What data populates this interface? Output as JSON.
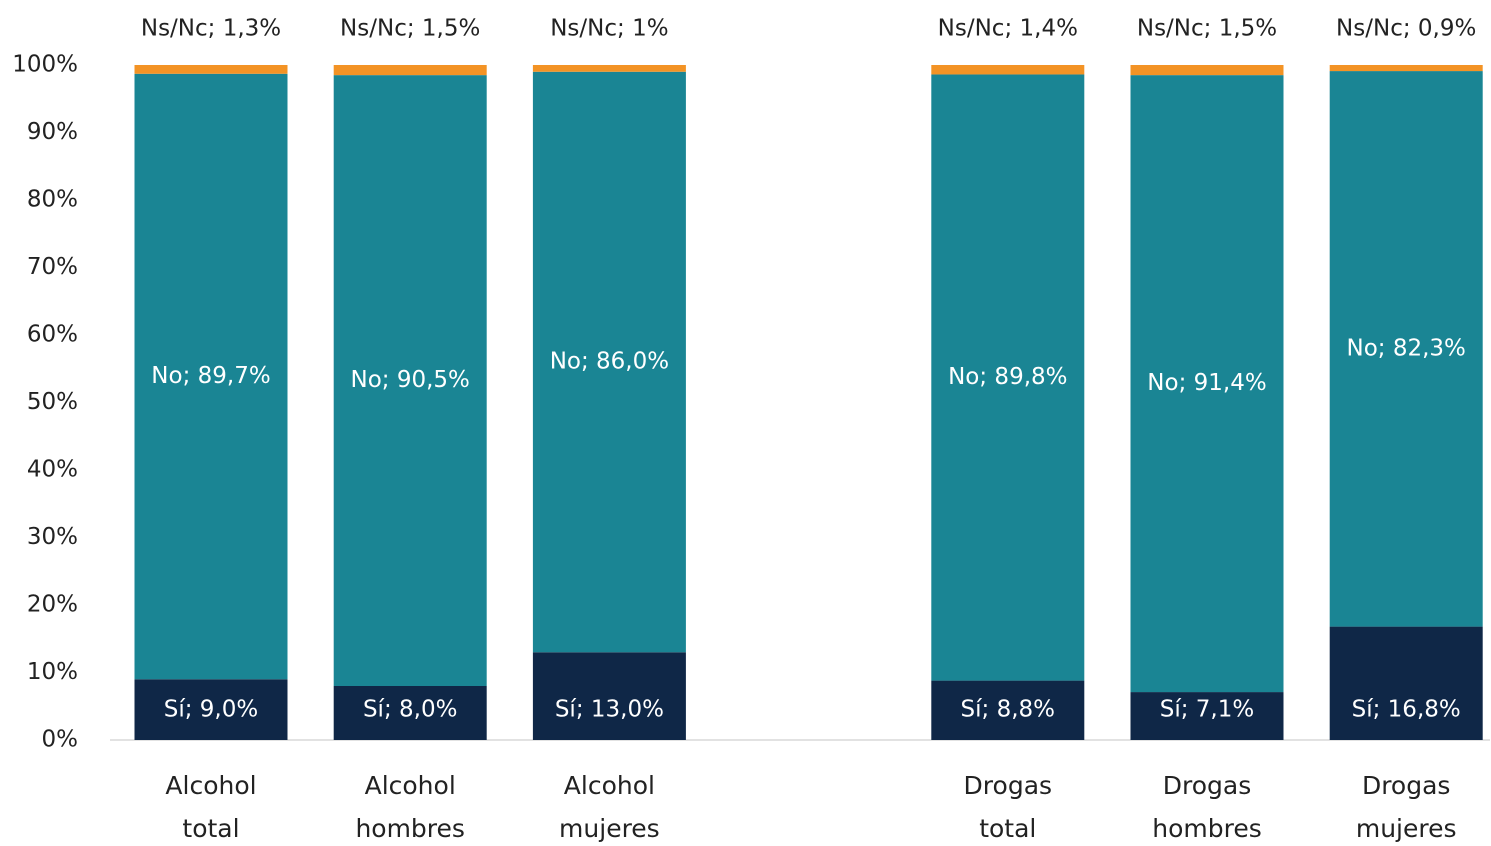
{
  "chart_data": {
    "type": "stacked_bar",
    "categories": [
      "Alcohol total",
      "Alcohol hombres",
      "Alcohol mujeres",
      null,
      "Drogas total",
      "Drogas hombres",
      "Drogas mujeres"
    ],
    "series": [
      {
        "name": "Sí",
        "color": "#0f2747",
        "values": [
          9.0,
          8.0,
          13.0,
          null,
          8.8,
          7.1,
          16.8
        ],
        "value_labels": [
          "Sí; 9,0%",
          "Sí; 8,0%",
          "Sí; 13,0%",
          null,
          "Sí; 8,8%",
          "Sí; 7,1%",
          "Sí; 16,8%"
        ]
      },
      {
        "name": "No",
        "color": "#1a8594",
        "values": [
          89.7,
          90.5,
          86.0,
          null,
          89.8,
          91.4,
          82.3
        ],
        "value_labels": [
          "No; 89,7%",
          "No; 90,5%",
          "No; 86,0%",
          null,
          "No; 89,8%",
          "No; 91,4%",
          "No; 82,3%"
        ]
      },
      {
        "name": "Ns/Nc",
        "color": "#f39325",
        "values": [
          1.3,
          1.5,
          1,
          null,
          1.4,
          1.5,
          0.9
        ],
        "value_labels": [
          "Ns/Nc; 1,3%",
          "Ns/Nc; 1,5%",
          "Ns/Nc; 1%",
          null,
          "Ns/Nc; 1,4%",
          "Ns/Nc; 1,5%",
          "Ns/Nc; 0,9%"
        ]
      }
    ],
    "ylim": [
      0,
      100
    ],
    "yticks": [
      {
        "value": 0,
        "label": "0%"
      },
      {
        "value": 10,
        "label": "10%"
      },
      {
        "value": 20,
        "label": "20%"
      },
      {
        "value": 30,
        "label": "30%"
      },
      {
        "value": 40,
        "label": "40%"
      },
      {
        "value": 50,
        "label": "50%"
      },
      {
        "value": 60,
        "label": "60%"
      },
      {
        "value": 70,
        "label": "70%"
      },
      {
        "value": 80,
        "label": "80%"
      },
      {
        "value": 90,
        "label": "90%"
      },
      {
        "value": 100,
        "label": "100%"
      }
    ],
    "grid": false
  }
}
